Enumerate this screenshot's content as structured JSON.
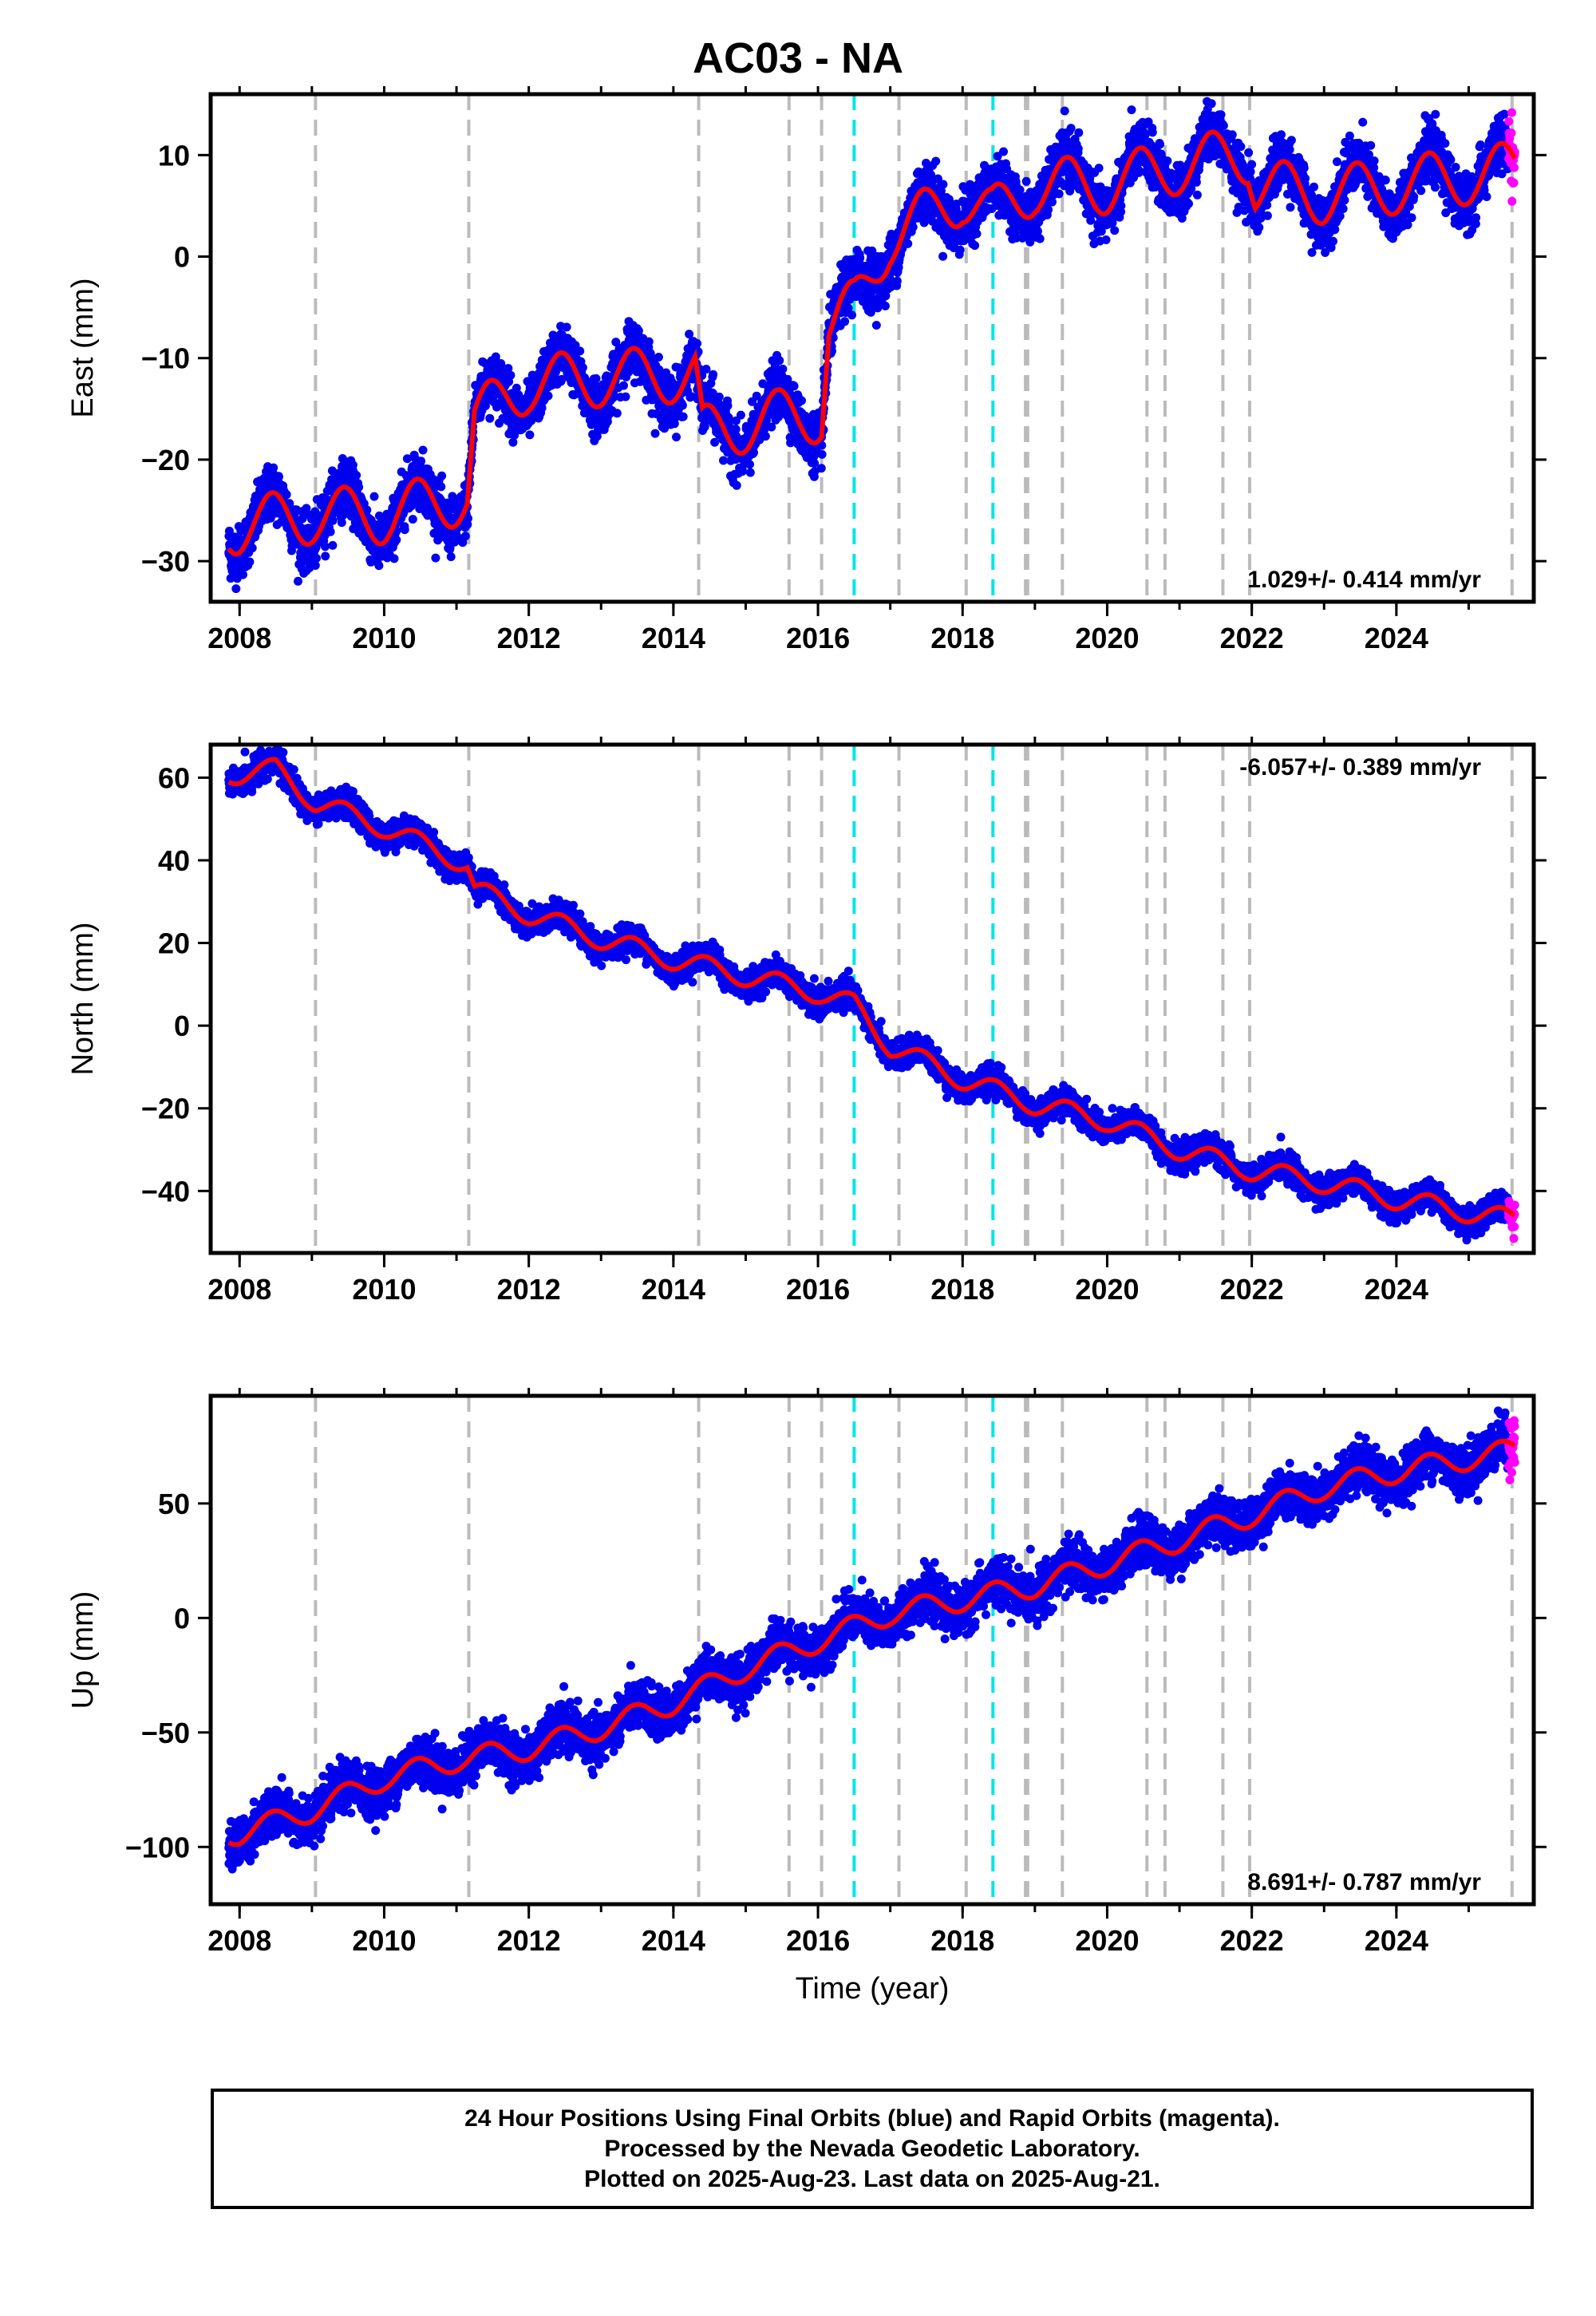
{
  "title": "AC03 - NA",
  "footer": {
    "line1": "24 Hour Positions Using Final Orbits (blue) and Rapid Orbits (magenta).",
    "line2": "Processed by the Nevada Geodetic Laboratory.",
    "line3": "Plotted on 2025-Aug-23. Last data on 2025-Aug-21."
  },
  "colors": {
    "final_orbits": "#0000ee",
    "rapid_orbits": "#ff00ff",
    "model": "#ff0000",
    "equipment_change": "#bbbbbb",
    "earthquake": "#00e5e5"
  },
  "chart_data": [
    {
      "type": "scatter",
      "panel": "east",
      "xlabel": "",
      "ylabel": "East (mm)",
      "xlim": [
        2007.6,
        2025.9
      ],
      "ylim": [
        -34,
        16
      ],
      "xticks": [
        2008,
        2010,
        2012,
        2014,
        2016,
        2018,
        2020,
        2022,
        2024
      ],
      "yticks": [
        -30,
        -20,
        -10,
        0,
        10
      ],
      "rate": "1.029+/- 0.414 mm/yr",
      "rate_position": "bottom-right",
      "steps": [
        {
          "t": 2011.2,
          "dy": 9
        },
        {
          "t": 2014.37,
          "dy": -6
        },
        {
          "t": 2016.1,
          "dy": 10
        },
        {
          "t": 2016.5,
          "dy": 0
        },
        {
          "t": 2018.42,
          "dy": 0
        },
        {
          "t": 2021.98,
          "dy": -6
        }
      ],
      "model_offsets": [
        {
          "t": 2008.0,
          "v": -26.5
        },
        {
          "t": 2009.0,
          "v": -25.5
        },
        {
          "t": 2010.0,
          "v": -25.5
        },
        {
          "t": 2011.15,
          "v": -23.5
        },
        {
          "t": 2011.25,
          "v": -16
        },
        {
          "t": 2012.0,
          "v": -12.5
        },
        {
          "t": 2013.0,
          "v": -12
        },
        {
          "t": 2014.3,
          "v": -11.5
        },
        {
          "t": 2014.4,
          "v": -17.5
        },
        {
          "t": 2015.3,
          "v": -16
        },
        {
          "t": 2016.05,
          "v": -15.5
        },
        {
          "t": 2016.15,
          "v": -7
        },
        {
          "t": 2016.5,
          "v": -5
        },
        {
          "t": 2017.0,
          "v": 2
        },
        {
          "t": 2017.5,
          "v": 4
        },
        {
          "t": 2018.0,
          "v": 6
        },
        {
          "t": 2018.4,
          "v": 4
        },
        {
          "t": 2019.0,
          "v": 7
        },
        {
          "t": 2020.0,
          "v": 7
        },
        {
          "t": 2021.0,
          "v": 9
        },
        {
          "t": 2021.95,
          "v": 10
        },
        {
          "t": 2022.05,
          "v": 7
        },
        {
          "t": 2023.0,
          "v": 6
        },
        {
          "t": 2024.0,
          "v": 7
        },
        {
          "t": 2025.6,
          "v": 8.5
        }
      ],
      "seasonal_amplitude": 2.8,
      "scatter_sigma": 1.3
    },
    {
      "type": "scatter",
      "panel": "north",
      "xlabel": "",
      "ylabel": "North (mm)",
      "xlim": [
        2007.6,
        2025.9
      ],
      "ylim": [
        -55,
        68
      ],
      "xticks": [
        2008,
        2010,
        2012,
        2014,
        2016,
        2018,
        2020,
        2022,
        2024
      ],
      "yticks": [
        -40,
        -20,
        0,
        20,
        40,
        60
      ],
      "rate": "-6.057+/- 0.389 mm/yr",
      "rate_position": "top-right",
      "model_offsets": [
        {
          "t": 2008.0,
          "v": 61
        },
        {
          "t": 2008.5,
          "v": 62
        },
        {
          "t": 2009.05,
          "v": 54
        },
        {
          "t": 2010.0,
          "v": 48
        },
        {
          "t": 2011.15,
          "v": 39
        },
        {
          "t": 2011.25,
          "v": 33
        },
        {
          "t": 2012.0,
          "v": 27
        },
        {
          "t": 2013.0,
          "v": 21
        },
        {
          "t": 2014.0,
          "v": 16
        },
        {
          "t": 2015.0,
          "v": 12
        },
        {
          "t": 2016.0,
          "v": 8
        },
        {
          "t": 2016.5,
          "v": 5
        },
        {
          "t": 2017.0,
          "v": -5
        },
        {
          "t": 2018.0,
          "v": -13
        },
        {
          "t": 2019.0,
          "v": -19
        },
        {
          "t": 2020.0,
          "v": -23
        },
        {
          "t": 2021.0,
          "v": -30
        },
        {
          "t": 2022.0,
          "v": -35
        },
        {
          "t": 2023.0,
          "v": -38
        },
        {
          "t": 2024.0,
          "v": -42
        },
        {
          "t": 2025.6,
          "v": -47
        }
      ],
      "seasonal_amplitude": 2.5,
      "scatter_sigma": 1.6
    },
    {
      "type": "scatter",
      "panel": "up",
      "xlabel": "Time (year)",
      "ylabel": "Up (mm)",
      "xlim": [
        2007.6,
        2025.9
      ],
      "ylim": [
        -125,
        97
      ],
      "xticks": [
        2008,
        2010,
        2012,
        2014,
        2016,
        2018,
        2020,
        2022,
        2024
      ],
      "yticks": [
        -100,
        -50,
        0,
        50
      ],
      "rate": "8.691+/- 0.787 mm/yr",
      "rate_position": "bottom-right",
      "model_offsets": [
        {
          "t": 2008.0,
          "v": -94
        },
        {
          "t": 2009.0,
          "v": -84
        },
        {
          "t": 2010.0,
          "v": -70
        },
        {
          "t": 2011.0,
          "v": -62
        },
        {
          "t": 2012.0,
          "v": -57
        },
        {
          "t": 2013.0,
          "v": -48
        },
        {
          "t": 2014.0,
          "v": -37
        },
        {
          "t": 2015.0,
          "v": -22
        },
        {
          "t": 2016.0,
          "v": -10
        },
        {
          "t": 2017.0,
          "v": 2
        },
        {
          "t": 2018.0,
          "v": 8
        },
        {
          "t": 2019.0,
          "v": 14
        },
        {
          "t": 2020.0,
          "v": 24
        },
        {
          "t": 2021.0,
          "v": 34
        },
        {
          "t": 2022.0,
          "v": 45
        },
        {
          "t": 2023.0,
          "v": 57
        },
        {
          "t": 2024.0,
          "v": 64
        },
        {
          "t": 2025.6,
          "v": 73
        }
      ],
      "seasonal_amplitude": 5,
      "scatter_sigma": 5
    }
  ],
  "event_lines": {
    "equipment_change": [
      2009.05,
      2011.17,
      2014.35,
      2015.6,
      2016.05,
      2017.12,
      2018.05,
      2018.87,
      2018.9,
      2019.38,
      2020.55,
      2020.8,
      2021.6,
      2021.97,
      2025.6
    ],
    "earthquake": [
      2016.5,
      2018.42
    ]
  },
  "rapid_orbits": {
    "start": 2025.55,
    "end": 2025.64
  }
}
